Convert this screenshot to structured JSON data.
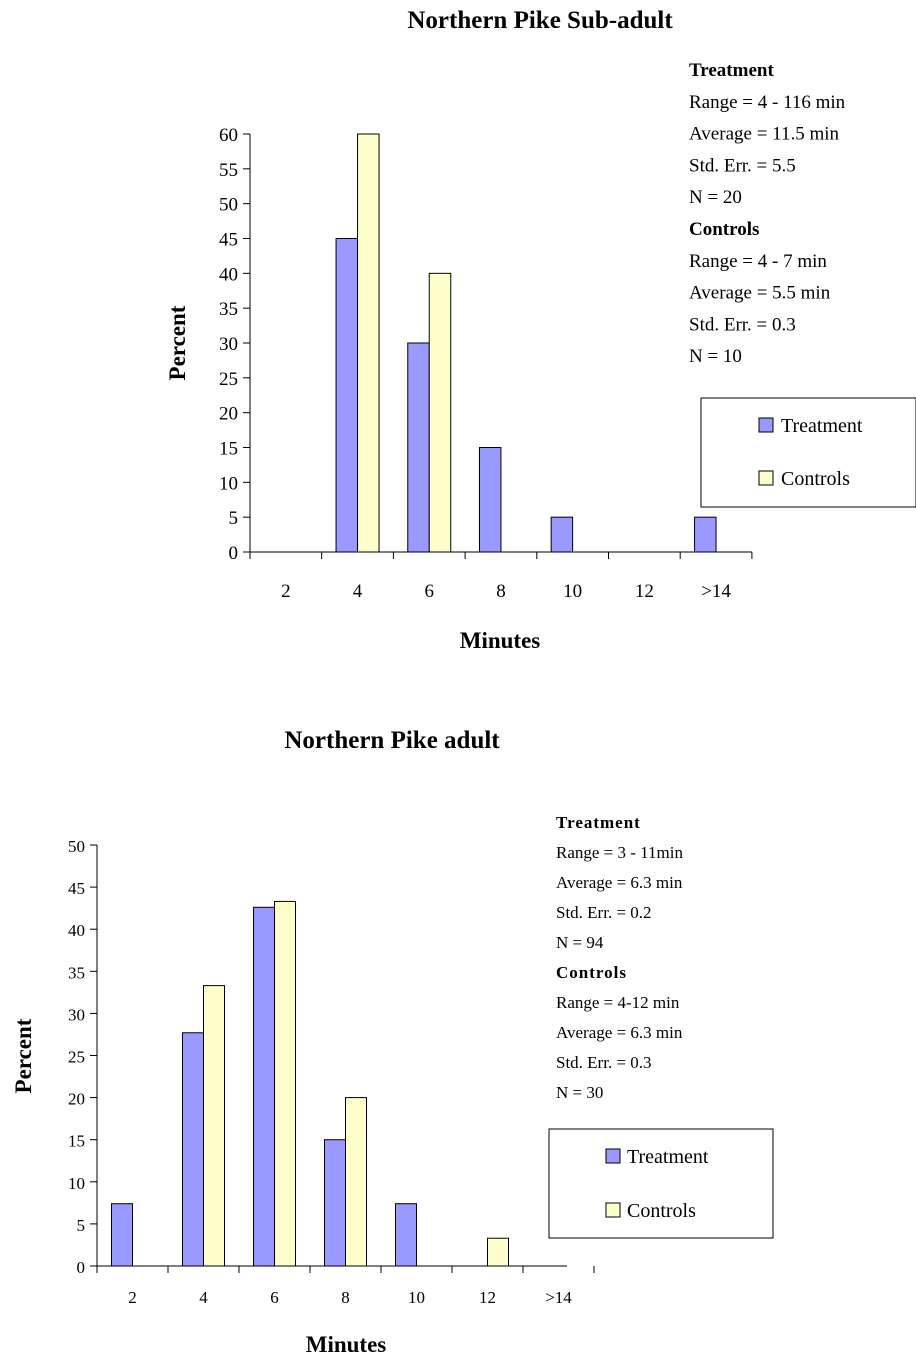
{
  "chart_data": [
    {
      "type": "bar",
      "title": "Northern Pike Sub-adult",
      "xlabel": "Minutes",
      "ylabel": "Percent",
      "ylim": [
        0,
        60
      ],
      "yticks": [
        0,
        5,
        10,
        15,
        20,
        25,
        30,
        35,
        40,
        45,
        50,
        55,
        60
      ],
      "categories": [
        "2",
        "4",
        "6",
        "8",
        "10",
        "12",
        ">14"
      ],
      "series": [
        {
          "name": "Treatment",
          "color": "#9999ff",
          "values": [
            0,
            45,
            30,
            15,
            5,
            0,
            5
          ]
        },
        {
          "name": "Controls",
          "color": "#ffffcc",
          "values": [
            0,
            60,
            40,
            0,
            0,
            0,
            0
          ]
        }
      ],
      "grid": false,
      "legend": "right",
      "stats": [
        {
          "heading": "Treatment",
          "lines": [
            "Range =   4 - 116 min",
            "Average = 11.5 min",
            "Std. Err. =  5.5",
            "N =   20"
          ]
        },
        {
          "heading": "Controls",
          "lines": [
            "Range =   4 - 7 min",
            "Average =  5.5 min",
            "Std. Err. =   0.3",
            "N =   10"
          ]
        }
      ]
    },
    {
      "type": "bar",
      "title": "Northern Pike adult",
      "xlabel": "Minutes",
      "ylabel": "Percent",
      "ylim": [
        0,
        50
      ],
      "yticks": [
        0,
        5,
        10,
        15,
        20,
        25,
        30,
        35,
        40,
        45,
        50
      ],
      "categories": [
        "2",
        "4",
        "6",
        "8",
        "10",
        "12",
        ">14"
      ],
      "series": [
        {
          "name": "Treatment",
          "color": "#9999ff",
          "values": [
            7.4,
            27.7,
            42.6,
            15,
            7.4,
            0,
            0
          ]
        },
        {
          "name": "Controls",
          "color": "#ffffcc",
          "values": [
            0,
            33.3,
            43.3,
            20,
            0,
            3.3,
            0
          ]
        }
      ],
      "grid": false,
      "legend": "right",
      "stats": [
        {
          "heading": "Treatment",
          "lines": [
            "Range =  3 - 11min",
            "Average = 6.3  min",
            "Std. Err. =  0.2",
            "N =    94"
          ]
        },
        {
          "heading": "Controls",
          "lines": [
            "Range =  4-12  min",
            "Average = 6.3  min",
            "Std. Err. =  0.3",
            "N =    30"
          ]
        }
      ]
    }
  ]
}
